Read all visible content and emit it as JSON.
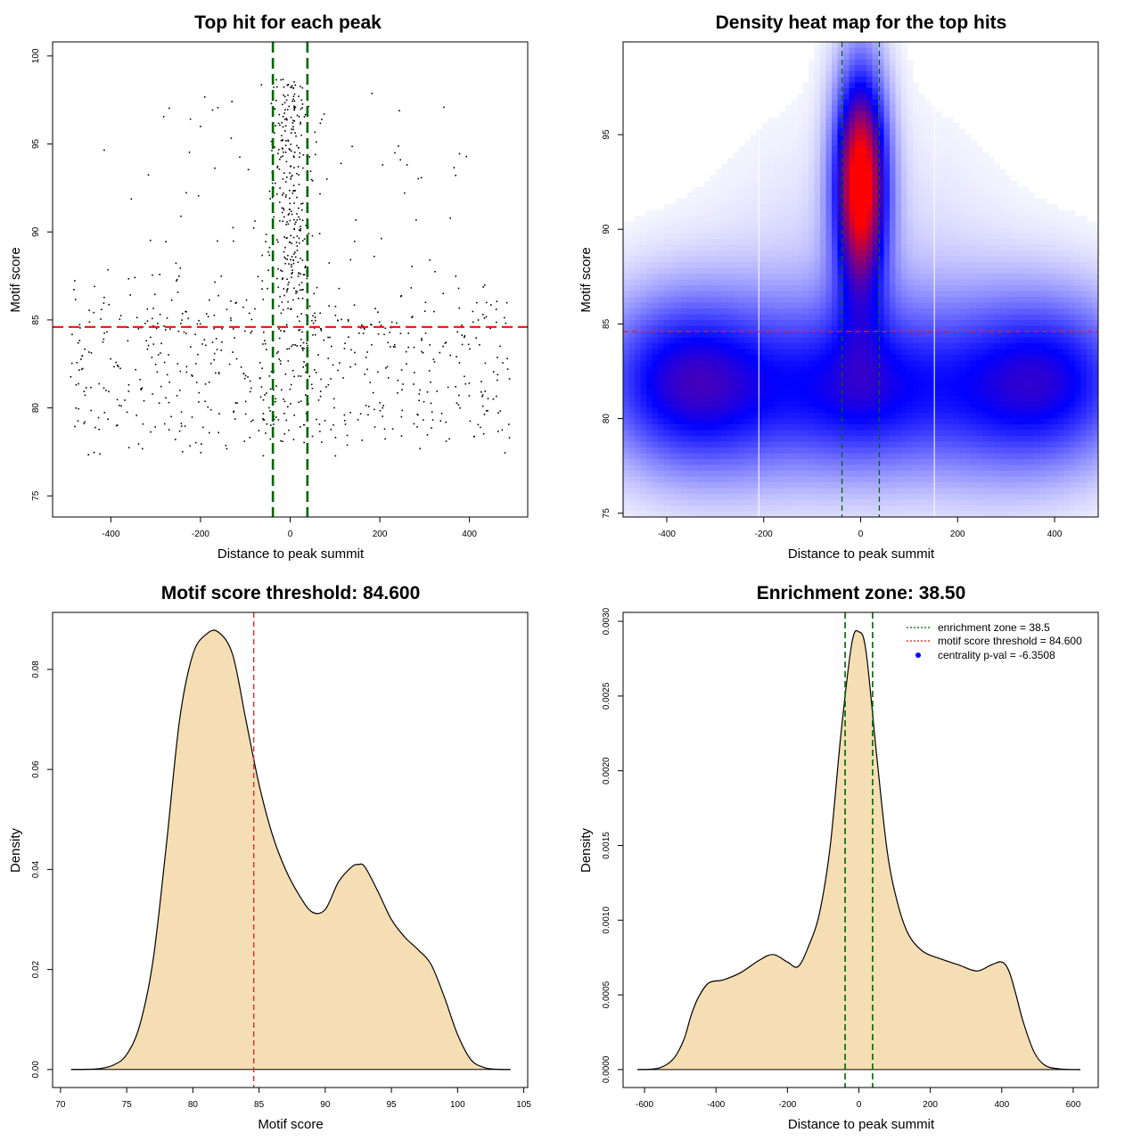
{
  "chart_data": [
    {
      "type": "scatter",
      "title": "Top hit for each peak",
      "xlabel": "Distance to peak summit",
      "ylabel": "Motif score",
      "xlim": [
        -530,
        530
      ],
      "ylim": [
        73.8,
        100.8
      ],
      "xticks": [
        -400,
        -200,
        0,
        200,
        400
      ],
      "yticks": [
        75,
        80,
        85,
        90,
        95,
        100
      ],
      "xtick_labels": [
        "-400",
        "-200",
        "0",
        "200",
        "400"
      ],
      "ytick_labels": [
        "75",
        "80",
        "85",
        "90",
        "95",
        "100"
      ],
      "hline": {
        "value": 84.6,
        "color": "#ee1111"
      },
      "vlines": {
        "values": [
          -38.5,
          38.5
        ],
        "color": "#006400"
      },
      "points_note": "~1000 top-hit points: dense column near x=0 (score 86-99) and a broad band across all distances (score 77-86)",
      "point_count": 1000,
      "seed": 12345
    },
    {
      "type": "heatmap",
      "title": "Density heat map for the top hits",
      "xlabel": "Distance to peak summit",
      "ylabel": "Motif score",
      "xlim": [
        -490,
        490
      ],
      "ylim": [
        74.8,
        99.9
      ],
      "xticks": [
        -400,
        -200,
        0,
        200,
        400
      ],
      "yticks": [
        75,
        80,
        85,
        90,
        95
      ],
      "xtick_labels": [
        "-400",
        "-200",
        "0",
        "200",
        "400"
      ],
      "ytick_labels": [
        "75",
        "80",
        "85",
        "90",
        "95"
      ],
      "hline": {
        "value": 84.6,
        "color": "#dd2222"
      },
      "vlines": {
        "values": [
          -38.5,
          38.5
        ],
        "color": "#006400"
      },
      "white_lines_x": [
        -210,
        152
      ],
      "colors": {
        "low": "#ffffff",
        "mid": "#0000ff",
        "high": "#ff0000"
      },
      "blobs": [
        {
          "x": 0,
          "y": 92.5,
          "sx": 38,
          "sy": 4.2,
          "w": 1.0
        },
        {
          "x": 0,
          "y": 81.5,
          "sx": 120,
          "sy": 3.2,
          "w": 0.42
        },
        {
          "x": -400,
          "y": 82.0,
          "sx": 120,
          "sy": 3.3,
          "w": 0.42
        },
        {
          "x": 420,
          "y": 82.0,
          "sx": 120,
          "sy": 3.3,
          "w": 0.42
        },
        {
          "x": -250,
          "y": 81.5,
          "sx": 120,
          "sy": 3.5,
          "w": 0.3
        },
        {
          "x": 250,
          "y": 81.5,
          "sx": 120,
          "sy": 3.5,
          "w": 0.3
        },
        {
          "x": 0,
          "y": 87.0,
          "sx": 200,
          "sy": 6.0,
          "w": 0.09
        }
      ]
    },
    {
      "type": "area",
      "title": "Motif score threshold: 84.600",
      "xlabel": "Motif score",
      "ylabel": "Density",
      "xlim": [
        69.4,
        105.3
      ],
      "ylim": [
        -0.0036,
        0.0914
      ],
      "xticks": [
        70,
        75,
        80,
        85,
        90,
        95,
        100,
        105
      ],
      "yticks": [
        0,
        0.02,
        0.04,
        0.06,
        0.08
      ],
      "xtick_labels": [
        "70",
        "75",
        "80",
        "85",
        "90",
        "95",
        "100",
        "105"
      ],
      "ytick_labels": [
        "0.00",
        "0.02",
        "0.04",
        "0.06",
        "0.08"
      ],
      "x": [
        70.8,
        72,
        73,
        74,
        75,
        76,
        77,
        78,
        79,
        80,
        81,
        81.9,
        83,
        84,
        85,
        86,
        87,
        88,
        89,
        90,
        91,
        92,
        92.5,
        93,
        94,
        95,
        96,
        97,
        98,
        99,
        100,
        101,
        102,
        103,
        104
      ],
      "values": [
        0,
        5e-05,
        0.0002,
        0.0009,
        0.003,
        0.009,
        0.022,
        0.045,
        0.07,
        0.083,
        0.087,
        0.0875,
        0.083,
        0.07,
        0.057,
        0.047,
        0.04,
        0.035,
        0.0315,
        0.032,
        0.0375,
        0.0405,
        0.041,
        0.0405,
        0.0355,
        0.03,
        0.0265,
        0.024,
        0.021,
        0.0145,
        0.007,
        0.002,
        0.0004,
        5e-05,
        0
      ],
      "vline": {
        "value": 84.6,
        "color": "#dd2222"
      },
      "fill": "#f5deb3"
    },
    {
      "type": "area",
      "title": "Enrichment zone: 38.50",
      "xlabel": "Distance to peak summit",
      "ylabel": "Density",
      "xlim": [
        -660,
        670
      ],
      "ylim": [
        -0.00012,
        0.00306
      ],
      "xticks": [
        -600,
        -400,
        -200,
        0,
        200,
        400,
        600
      ],
      "yticks": [
        0,
        0.0005,
        0.001,
        0.0015,
        0.002,
        0.0025,
        0.003
      ],
      "xtick_labels": [
        "-600",
        "-400",
        "-200",
        "0",
        "200",
        "400",
        "600"
      ],
      "ytick_labels": [
        "0.0000",
        "0.0005",
        "0.0010",
        "0.0015",
        "0.0020",
        "0.0025",
        "0.0030"
      ],
      "x": [
        -620,
        -560,
        -520,
        -490,
        -470,
        -450,
        -420,
        -380,
        -330,
        -280,
        -240,
        -200,
        -170,
        -140,
        -110,
        -80,
        -50,
        -20,
        0,
        20,
        50,
        80,
        110,
        140,
        180,
        230,
        280,
        330,
        370,
        400,
        420,
        440,
        460,
        490,
        520,
        560,
        620
      ],
      "values": [
        0,
        1e-05,
        7e-05,
        0.0002,
        0.00036,
        0.00048,
        0.00058,
        0.0006,
        0.00065,
        0.00073,
        0.00077,
        0.00072,
        0.00069,
        0.00083,
        0.00105,
        0.0015,
        0.00225,
        0.00285,
        0.00293,
        0.0028,
        0.0021,
        0.00145,
        0.0011,
        0.0009,
        0.00079,
        0.00074,
        0.0007,
        0.00066,
        0.0007,
        0.00072,
        0.00066,
        0.0005,
        0.00032,
        0.00012,
        3e-05,
        5e-06,
        0
      ],
      "vlines": {
        "values": [
          -38.5,
          38.5
        ],
        "color": "#006400"
      },
      "fill": "#f5deb3",
      "legend": {
        "position": "top-right",
        "items": [
          {
            "label": "enrichment zone = 38.5",
            "color": "#006400",
            "style": "dotted"
          },
          {
            "label": "motif score threshold = 84.600",
            "color": "#ee1111",
            "style": "dotted"
          },
          {
            "label": "centrality p-val = -6.3508",
            "color": "#0000ff",
            "style": "point"
          }
        ]
      }
    }
  ]
}
